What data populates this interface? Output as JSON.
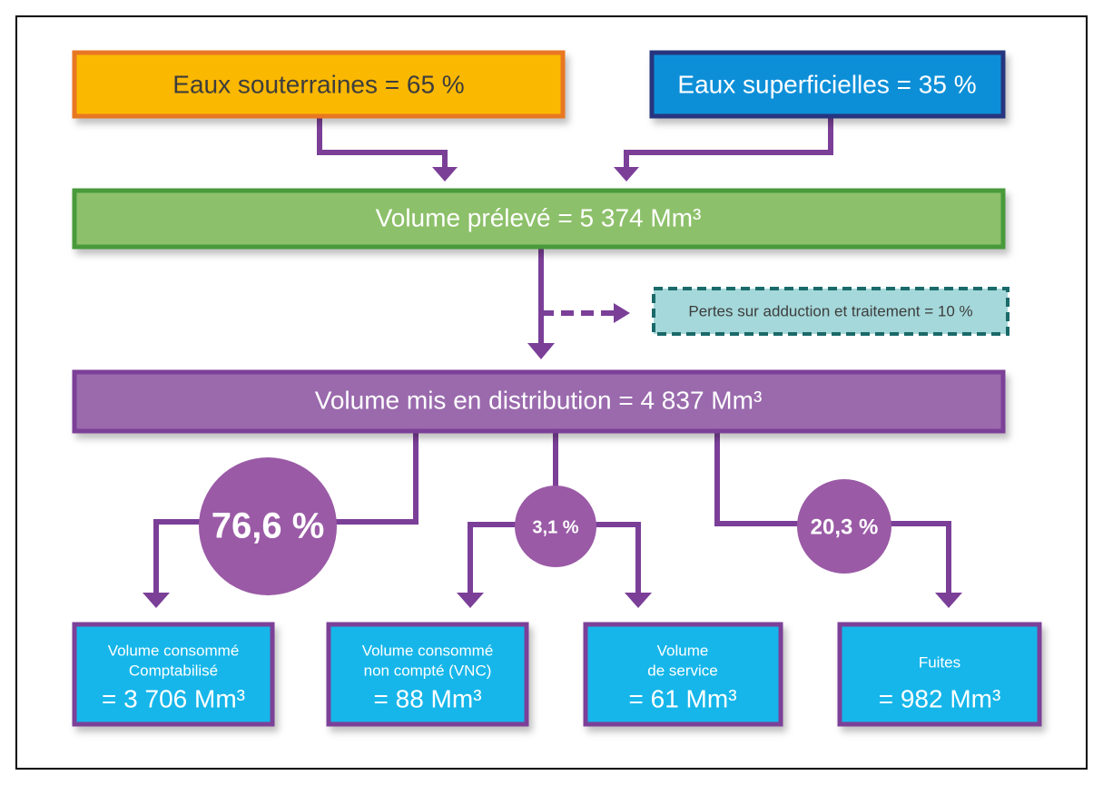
{
  "sources": [
    {
      "label": "Eaux souterraines = 65 %"
    },
    {
      "label": "Eaux superficielles = 35 %"
    }
  ],
  "withdrawn": {
    "label": "Volume prélevé = 5 374 Mm³"
  },
  "losses": {
    "label": "Pertes sur adduction et traitement = 10 %"
  },
  "distributed": {
    "label": "Volume mis en distribution = 4 837 Mm³"
  },
  "shares": [
    "76,6 %",
    "3,1 %",
    "20,3 %"
  ],
  "outputs": [
    {
      "lines": [
        "Volume consommé",
        "Comptabilisé"
      ],
      "value": "= 3 706 Mm³"
    },
    {
      "lines": [
        "Volume consommé",
        "non compté (VNC)"
      ],
      "value": "= 88 Mm³"
    },
    {
      "lines": [
        "Volume",
        "de service"
      ],
      "value": "= 61 Mm³"
    },
    {
      "lines": [
        "Fuites"
      ],
      "value": "= 982 Mm³"
    }
  ]
}
